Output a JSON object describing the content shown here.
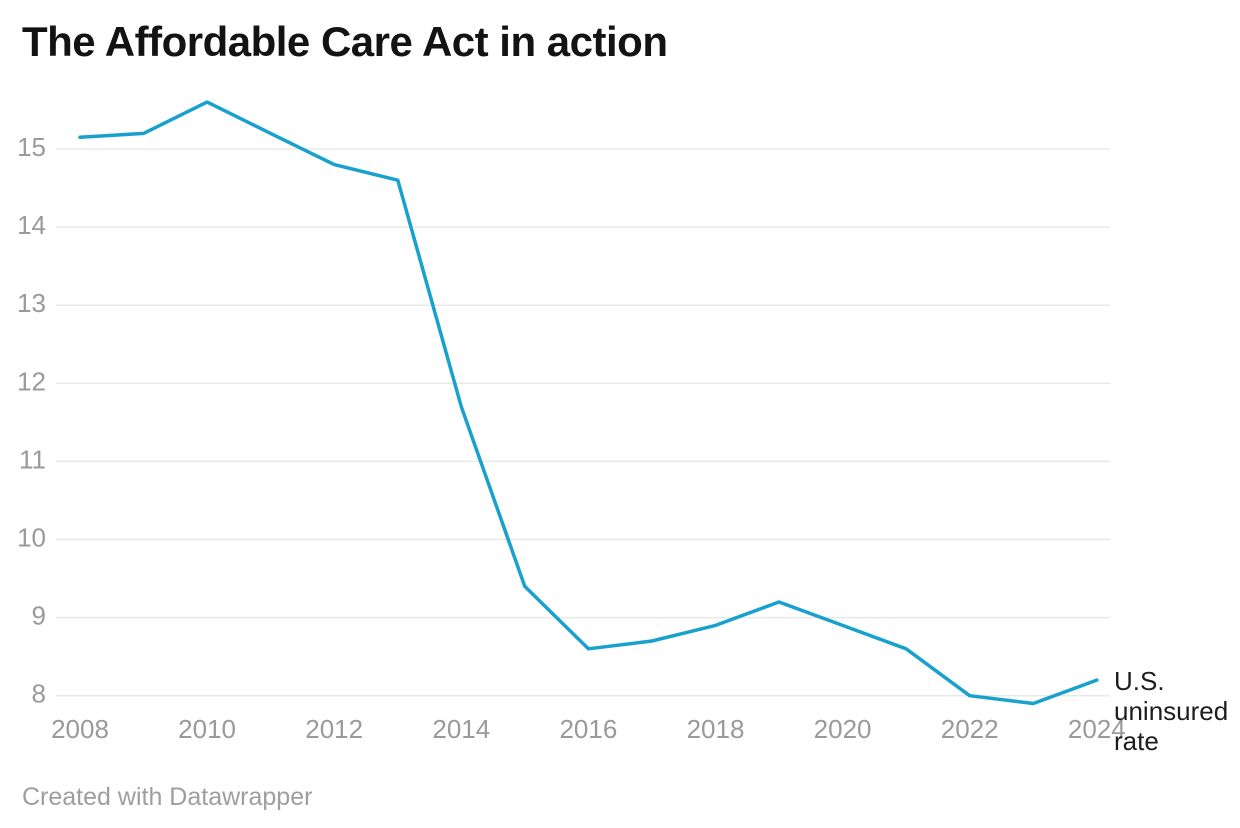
{
  "page": {
    "title": "The Affordable Care Act in action",
    "footer": "Created with Datawrapper"
  },
  "chart_data": {
    "type": "line",
    "title": "The Affordable Care Act in action",
    "annotation": "U.S. uninsured rate",
    "x": [
      2008,
      2009,
      2010,
      2011,
      2012,
      2013,
      2014,
      2015,
      2016,
      2017,
      2018,
      2019,
      2020,
      2021,
      2022,
      2023,
      2024
    ],
    "series": [
      {
        "name": "U.S. uninsured rate",
        "values": [
          15.15,
          15.2,
          15.6,
          15.2,
          14.8,
          14.6,
          11.7,
          9.4,
          8.6,
          8.7,
          8.9,
          9.2,
          8.9,
          8.6,
          8.0,
          7.9,
          8.2
        ]
      }
    ],
    "x_ticks": [
      2008,
      2010,
      2012,
      2014,
      2016,
      2018,
      2020,
      2022,
      2024
    ],
    "y_ticks": [
      8,
      9,
      10,
      11,
      12,
      13,
      14,
      15
    ],
    "xlim": [
      2008,
      2024
    ],
    "ylim": [
      7.65,
      15.8
    ],
    "xlabel": "",
    "ylabel": "",
    "grid": "horizontal-only",
    "legend_position": "end-of-line-label",
    "colors": {
      "line": "#18a1cd",
      "gridline": "#e8e8e8",
      "tick_label": "#9a9a9a",
      "title": "#131313",
      "annotation": "#1d1d1d",
      "footer": "#9e9e9e"
    }
  }
}
